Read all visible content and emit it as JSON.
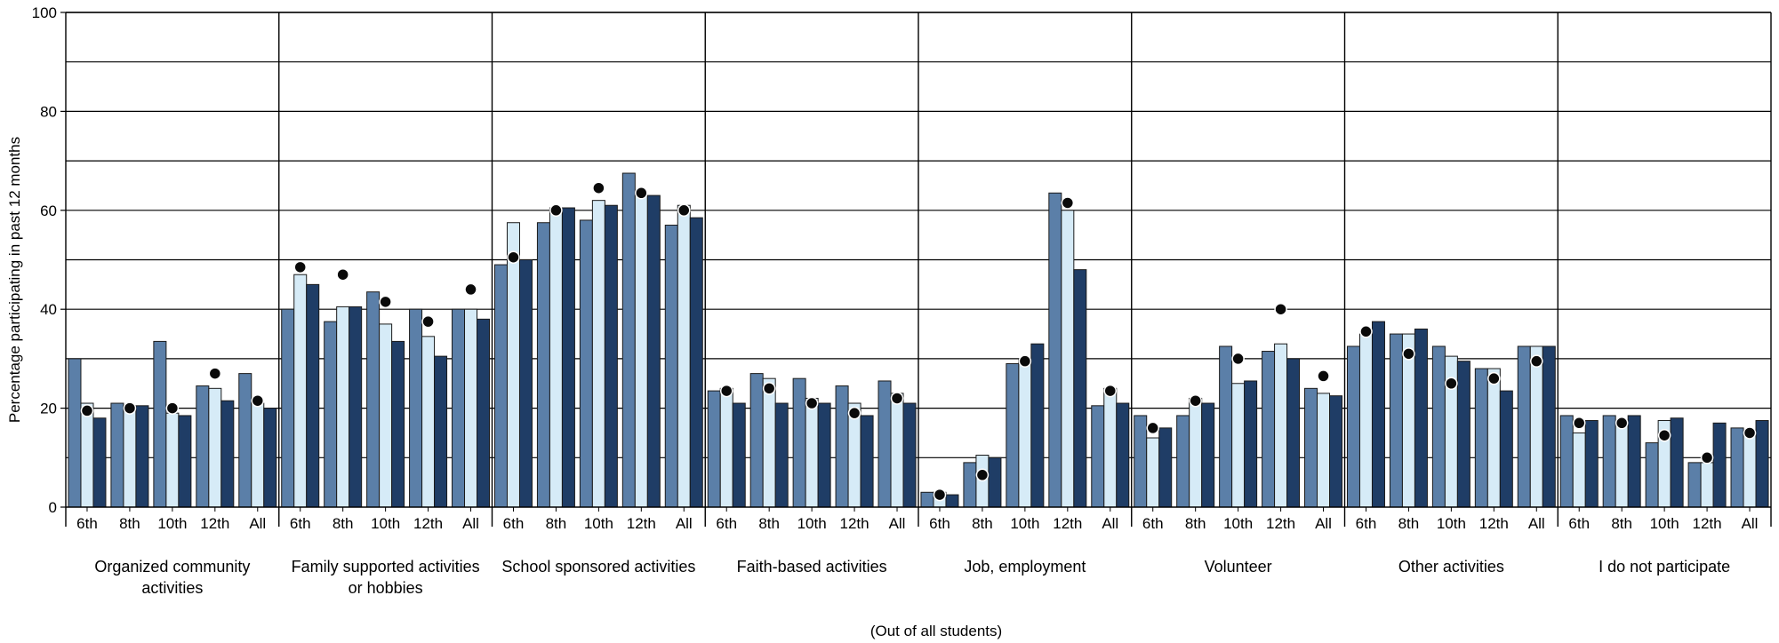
{
  "chart_data": {
    "type": "bar",
    "title": "",
    "ylabel": "Percentage participating in past 12 months",
    "xlabel": "(Out of all students)",
    "ylim": [
      0,
      100
    ],
    "yticks": [
      0,
      20,
      40,
      60,
      80,
      100
    ],
    "grid": true,
    "legend": "none",
    "subcategories": [
      "6th",
      "8th",
      "10th",
      "12th",
      "All"
    ],
    "colors": {
      "series_1": "#5b7fa8",
      "series_2": "#d6ebf7",
      "series_3": "#1f3d66",
      "marker": "#0a0a0a",
      "grid": "#000000"
    },
    "groups": [
      {
        "label": [
          "Organized community",
          "activities"
        ],
        "bars": [
          [
            30,
            21,
            18
          ],
          [
            21,
            20,
            20.5
          ],
          [
            33.5,
            19,
            18.5
          ],
          [
            24.5,
            24,
            21.5
          ],
          [
            27,
            21,
            20
          ]
        ],
        "markers": [
          19.5,
          20,
          20,
          27,
          21.5
        ]
      },
      {
        "label": [
          "Family supported activities",
          "or hobbies"
        ],
        "bars": [
          [
            40,
            47,
            45
          ],
          [
            37.5,
            40.5,
            40.5
          ],
          [
            43.5,
            37,
            33.5
          ],
          [
            40,
            34.5,
            30.5
          ],
          [
            40,
            40,
            38
          ]
        ],
        "markers": [
          48.5,
          47,
          41.5,
          37.5,
          44
        ]
      },
      {
        "label": [
          "School sponsored activities"
        ],
        "bars": [
          [
            49,
            57.5,
            50
          ],
          [
            57.5,
            60.5,
            60.5
          ],
          [
            58,
            62,
            61
          ],
          [
            67.5,
            63,
            63
          ],
          [
            57,
            61,
            58.5
          ]
        ],
        "markers": [
          50.5,
          60,
          64.5,
          63.5,
          60
        ]
      },
      {
        "label": [
          "Faith-based activities"
        ],
        "bars": [
          [
            23.5,
            24,
            21
          ],
          [
            27,
            26,
            21
          ],
          [
            26,
            22,
            21
          ],
          [
            24.5,
            21,
            18.5
          ],
          [
            25.5,
            23,
            21
          ]
        ],
        "markers": [
          23.5,
          24,
          21,
          19,
          22
        ]
      },
      {
        "label": [
          "Job, employment"
        ],
        "bars": [
          [
            3,
            3,
            2.5
          ],
          [
            9,
            10.5,
            10
          ],
          [
            29,
            30,
            33
          ],
          [
            63.5,
            60,
            48
          ],
          [
            20.5,
            24,
            21
          ]
        ],
        "markers": [
          2.5,
          6.5,
          29.5,
          61.5,
          23.5
        ]
      },
      {
        "label": [
          "Volunteer"
        ],
        "bars": [
          [
            18.5,
            14,
            16
          ],
          [
            18.5,
            22,
            21
          ],
          [
            32.5,
            25,
            25.5
          ],
          [
            31.5,
            33,
            30
          ],
          [
            24,
            23,
            22.5
          ]
        ],
        "markers": [
          16,
          21.5,
          30,
          40,
          26.5
        ]
      },
      {
        "label": [
          "Other activities"
        ],
        "bars": [
          [
            32.5,
            35,
            37.5
          ],
          [
            35,
            35,
            36
          ],
          [
            32.5,
            30.5,
            29.5
          ],
          [
            28,
            28,
            23.5
          ],
          [
            32.5,
            32.5,
            32.5
          ]
        ],
        "markers": [
          35.5,
          31,
          25,
          26,
          29.5
        ]
      },
      {
        "label": [
          "I do not participate"
        ],
        "bars": [
          [
            18.5,
            15,
            17.5
          ],
          [
            18.5,
            17,
            18.5
          ],
          [
            13,
            17.5,
            18
          ],
          [
            9,
            9,
            17
          ],
          [
            16,
            15.5,
            17.5
          ]
        ],
        "markers": [
          17,
          17,
          14.5,
          10,
          15
        ]
      }
    ]
  }
}
